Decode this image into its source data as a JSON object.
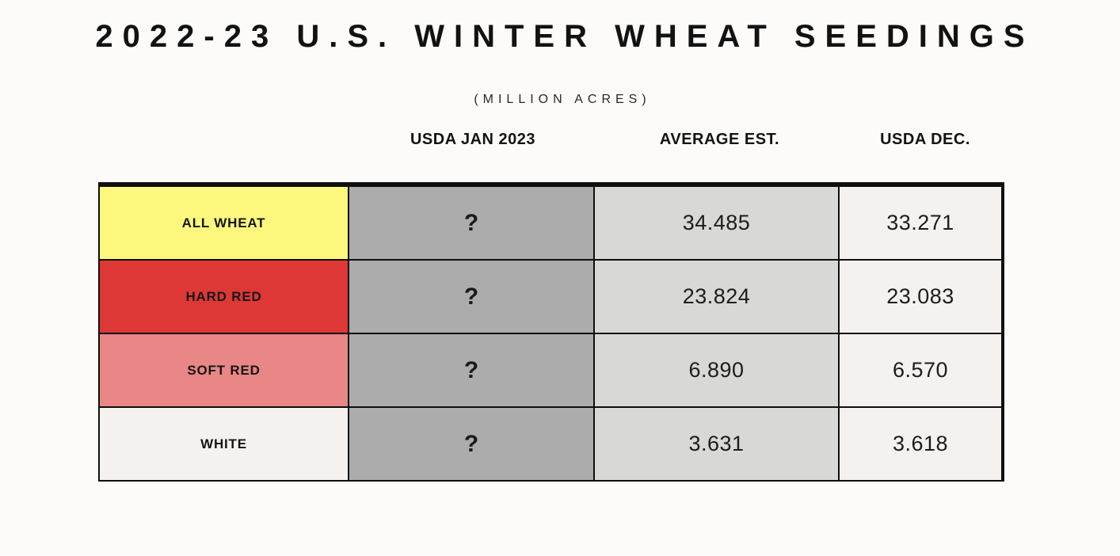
{
  "page": {
    "background": "#fcfbf9",
    "border_color": "#0f0f0f"
  },
  "title": "2022-23 U.S. WINTER WHEAT SEEDINGS",
  "subtitle": "(MILLION ACRES)",
  "table": {
    "column_headers": [
      "USDA JAN 2023",
      "AVERAGE EST.",
      "USDA DEC."
    ],
    "column_colors": {
      "usda_jan": "#acacac",
      "average_est": "#d8d8d6",
      "usda_dec": "#f5f1ee"
    },
    "rows": [
      {
        "label": "ALL WHEAT",
        "color": "#fdf87d",
        "usda_jan": "?",
        "average_est": "34.485",
        "usda_dec": "33.271"
      },
      {
        "label": "HARD RED",
        "color": "#dd3835",
        "usda_jan": "?",
        "average_est": "23.824",
        "usda_dec": "23.083"
      },
      {
        "label": "SOFT RED",
        "color": "#e98686",
        "usda_jan": "?",
        "average_est": "6.890",
        "usda_dec": "6.570"
      },
      {
        "label": "WHITE",
        "color": "#f5f1ee",
        "usda_jan": "?",
        "average_est": "3.631",
        "usda_dec": "3.618"
      }
    ]
  },
  "chart_data": {
    "type": "table",
    "title": "2022-23 U.S. Winter Wheat Seedings",
    "units": "million acres",
    "columns": [
      "USDA JAN 2023",
      "AVERAGE EST.",
      "USDA DEC."
    ],
    "categories": [
      "ALL WHEAT",
      "HARD RED",
      "SOFT RED",
      "WHITE"
    ],
    "series": [
      {
        "name": "USDA JAN 2023",
        "values": [
          "?",
          "?",
          "?",
          "?"
        ]
      },
      {
        "name": "AVERAGE EST.",
        "values": [
          34.485,
          23.824,
          6.89,
          3.631
        ]
      },
      {
        "name": "USDA DEC.",
        "values": [
          33.271,
          23.083,
          6.57,
          3.618
        ]
      }
    ]
  }
}
